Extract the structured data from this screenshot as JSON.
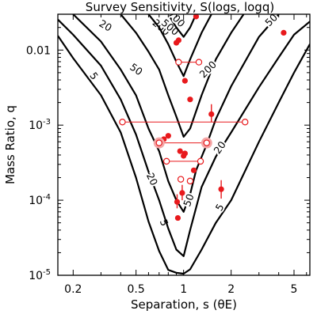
{
  "chart_data": {
    "type": "scatter",
    "title": "Survey Sensitivity, S(logs, logq)",
    "xlabel": "Separation, s (θE)",
    "ylabel": "Mass Ratio, q",
    "x_scale": "log",
    "y_scale": "log",
    "xlim": [
      0.16,
      6.3
    ],
    "ylim": [
      1e-05,
      0.03
    ],
    "x_ticks": [
      {
        "value": 0.2,
        "label": "0.2"
      },
      {
        "value": 0.5,
        "label": "0.5"
      },
      {
        "value": 1,
        "label": "1"
      },
      {
        "value": 2,
        "label": "2"
      },
      {
        "value": 5,
        "label": "5"
      }
    ],
    "y_ticks": [
      {
        "value": 0.01,
        "label": "0.01"
      },
      {
        "value": 0.001,
        "label": "10^-3"
      },
      {
        "value": 0.0001,
        "label": "10^-4"
      },
      {
        "value": 1e-05,
        "label": "10^-5"
      }
    ],
    "grid": false,
    "colors": {
      "contour": "#000000",
      "points": "#e8191c",
      "highlight": "#f4a6a6"
    },
    "contours": [
      {
        "level": "5",
        "left": [
          [
            0.16,
            0.0155
          ],
          [
            0.2,
            0.0078
          ],
          [
            0.3,
            0.0025
          ],
          [
            0.4,
            0.0008
          ],
          [
            0.5,
            0.0002
          ],
          [
            0.6,
            5.2e-05
          ],
          [
            0.7,
            2.1e-05
          ],
          [
            0.8,
            1.18e-05
          ],
          [
            0.9,
            1.08e-05
          ],
          [
            1.0,
            1.05e-05
          ]
        ],
        "right": [
          [
            1.0,
            1.05e-05
          ],
          [
            1.1,
            1.2e-05
          ],
          [
            1.3,
            2.2e-05
          ],
          [
            1.6,
            5e-05
          ],
          [
            2.0,
            0.0001
          ],
          [
            3.0,
            0.0006
          ],
          [
            4.0,
            0.002
          ],
          [
            5.0,
            0.005
          ],
          [
            6.3,
            0.012
          ]
        ],
        "labels": [
          {
            "x": 0.27,
            "y": 0.0045,
            "rot": 55
          },
          {
            "x": 0.75,
            "y": 5e-05,
            "rot": 70
          },
          {
            "x": 1.7,
            "y": 8e-05,
            "rot": -60
          }
        ]
      },
      {
        "level": "20",
        "left": [
          [
            0.16,
            0.0255
          ],
          [
            0.2,
            0.016
          ],
          [
            0.3,
            0.0062
          ],
          [
            0.4,
            0.0022
          ],
          [
            0.5,
            0.00075
          ],
          [
            0.6,
            0.00024
          ],
          [
            0.7,
            0.0001
          ],
          [
            0.8,
            4.2e-05
          ],
          [
            0.9,
            2.2e-05
          ],
          [
            1.0,
            1.8e-05
          ]
        ],
        "right": [
          [
            1.0,
            1.8e-05
          ],
          [
            1.1,
            4e-05
          ],
          [
            1.3,
            0.00015
          ],
          [
            1.6,
            0.00038
          ],
          [
            2.0,
            0.0008
          ],
          [
            3.0,
            0.0032
          ],
          [
            4.0,
            0.008
          ],
          [
            5.0,
            0.016
          ],
          [
            6.3,
            0.024
          ]
        ],
        "labels": [
          {
            "x": 0.32,
            "y": 0.021,
            "rot": 30
          },
          {
            "x": 0.63,
            "y": 0.00019,
            "rot": 65
          },
          {
            "x": 1.7,
            "y": 0.0005,
            "rot": -55
          }
        ]
      },
      {
        "level": "50",
        "left": [
          [
            0.2,
            0.03
          ],
          [
            0.3,
            0.013
          ],
          [
            0.4,
            0.0055
          ],
          [
            0.5,
            0.0025
          ],
          [
            0.6,
            0.0009
          ],
          [
            0.7,
            0.00045
          ],
          [
            0.8,
            0.00018
          ],
          [
            0.9,
            0.0001
          ],
          [
            1.0,
            7e-05
          ]
        ],
        "right": [
          [
            1.0,
            7e-05
          ],
          [
            1.1,
            0.00012
          ],
          [
            1.2,
            0.00025
          ],
          [
            1.4,
            0.00055
          ],
          [
            1.6,
            0.0012
          ],
          [
            2.0,
            0.0033
          ],
          [
            3.0,
            0.015
          ],
          [
            4.0,
            0.03
          ]
        ],
        "labels": [
          {
            "x": 0.5,
            "y": 0.0055,
            "rot": 35
          },
          {
            "x": 1.08,
            "y": 0.0001,
            "rot": -70
          },
          {
            "x": 3.6,
            "y": 0.025,
            "rot": -45
          }
        ]
      },
      {
        "level": "200",
        "left": [
          [
            0.4,
            0.03
          ],
          [
            0.5,
            0.017
          ],
          [
            0.6,
            0.0095
          ],
          [
            0.7,
            0.0055
          ],
          [
            0.8,
            0.0025
          ],
          [
            0.9,
            0.0013
          ],
          [
            1.0,
            0.0007
          ]
        ],
        "right": [
          [
            1.0,
            0.0007
          ],
          [
            1.1,
            0.0009
          ],
          [
            1.3,
            0.0025
          ],
          [
            1.6,
            0.0075
          ],
          [
            2.0,
            0.017
          ],
          [
            2.4,
            0.03
          ]
        ],
        "labels": [
          {
            "x": 0.72,
            "y": 0.02,
            "rot": 40
          },
          {
            "x": 1.43,
            "y": 0.0055,
            "rot": -45
          }
        ]
      },
      {
        "level": "500",
        "left": [
          [
            0.6,
            0.03
          ],
          [
            0.7,
            0.02
          ],
          [
            0.8,
            0.012
          ],
          [
            0.9,
            0.007
          ],
          [
            1.0,
            0.0045
          ]
        ],
        "right": [
          [
            1.0,
            0.0045
          ],
          [
            1.1,
            0.0075
          ],
          [
            1.3,
            0.017
          ],
          [
            1.5,
            0.03
          ]
        ],
        "labels": [
          {
            "x": 0.82,
            "y": 0.02,
            "rot": 40
          }
        ]
      },
      {
        "level": "700",
        "left": [
          [
            0.8,
            0.03
          ],
          [
            0.9,
            0.02
          ],
          [
            1.0,
            0.015
          ]
        ],
        "right": [
          [
            1.0,
            0.015
          ],
          [
            1.1,
            0.02
          ],
          [
            1.2,
            0.03
          ]
        ],
        "labels": [
          {
            "x": 0.9,
            "y": 0.026,
            "rot": 45
          }
        ]
      }
    ],
    "points": [
      {
        "x": 1.2,
        "y": 0.028,
        "filled": true
      },
      {
        "x": 0.93,
        "y": 0.0135,
        "filled": true
      },
      {
        "x": 0.9,
        "y": 0.0125,
        "filled": true
      },
      {
        "x": 4.3,
        "y": 0.017,
        "filled": true
      },
      {
        "x": 1.02,
        "y": 0.0039,
        "filled": true
      },
      {
        "x": 1.1,
        "y": 0.0022,
        "filled": true
      },
      {
        "x": 1.5,
        "y": 0.0014,
        "filled": true,
        "yerr": [
          0.0011,
          0.0019
        ]
      },
      {
        "x": 0.8,
        "y": 0.00072,
        "filled": true
      },
      {
        "x": 0.75,
        "y": 0.00065,
        "filled": true
      },
      {
        "x": 0.95,
        "y": 0.00045,
        "filled": true
      },
      {
        "x": 1.02,
        "y": 0.00042,
        "filled": true
      },
      {
        "x": 1.0,
        "y": 0.00039,
        "filled": true
      },
      {
        "x": 1.16,
        "y": 0.00025,
        "filled": true
      },
      {
        "x": 1.73,
        "y": 0.00014,
        "filled": true,
        "yerr": [
          0.000105,
          0.000185
        ]
      },
      {
        "x": 0.98,
        "y": 0.000125,
        "filled": true,
        "yerr": [
          0.0001,
          0.00016
        ]
      },
      {
        "x": 0.91,
        "y": 9.5e-05,
        "filled": true,
        "yerr": [
          7.8e-05,
          0.00012
        ]
      },
      {
        "x": 0.92,
        "y": 5.8e-05,
        "filled": true
      },
      {
        "x": 0.93,
        "y": 0.0069,
        "filled": false,
        "xerr": [
          0.93,
          1.25
        ]
      },
      {
        "x": 0.41,
        "y": 0.0011,
        "filled": false,
        "xerr": [
          0.41,
          2.45
        ]
      },
      {
        "x": 0.7,
        "y": 0.00058,
        "filled": false,
        "xerr": [
          0.7,
          1.4
        ],
        "highlight": true
      },
      {
        "x": 0.78,
        "y": 0.00033,
        "filled": false,
        "xerr": [
          0.78,
          1.28
        ]
      },
      {
        "x": 0.96,
        "y": 0.00019,
        "filled": false
      },
      {
        "x": 1.1,
        "y": 0.00018,
        "filled": false
      }
    ]
  }
}
